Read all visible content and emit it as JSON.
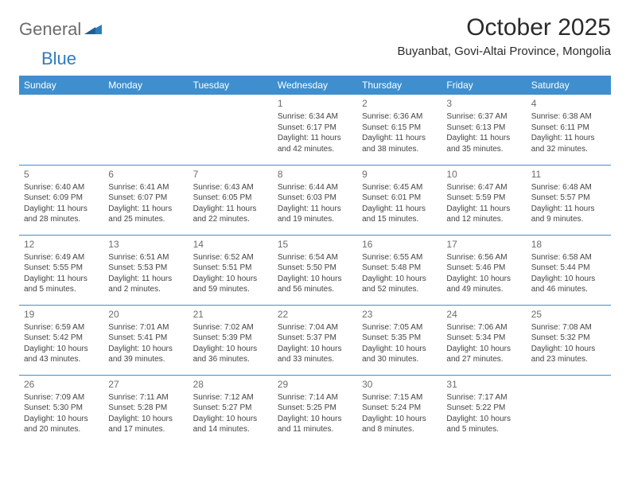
{
  "logo": {
    "part1": "General",
    "part2": "Blue"
  },
  "title": "October 2025",
  "location": "Buyanbat, Govi-Altai Province, Mongolia",
  "day_headers": [
    "Sunday",
    "Monday",
    "Tuesday",
    "Wednesday",
    "Thursday",
    "Friday",
    "Saturday"
  ],
  "colors": {
    "header_bg": "#3f8fce",
    "header_text": "#ffffff",
    "border": "#3f8fce",
    "logo_gray": "#6b6b6b",
    "logo_blue": "#2f7bbf"
  },
  "weeks": [
    [
      {
        "day": "",
        "sunrise": "",
        "sunset": "",
        "daylight": ""
      },
      {
        "day": "",
        "sunrise": "",
        "sunset": "",
        "daylight": ""
      },
      {
        "day": "",
        "sunrise": "",
        "sunset": "",
        "daylight": ""
      },
      {
        "day": "1",
        "sunrise": "Sunrise: 6:34 AM",
        "sunset": "Sunset: 6:17 PM",
        "daylight": "Daylight: 11 hours and 42 minutes."
      },
      {
        "day": "2",
        "sunrise": "Sunrise: 6:36 AM",
        "sunset": "Sunset: 6:15 PM",
        "daylight": "Daylight: 11 hours and 38 minutes."
      },
      {
        "day": "3",
        "sunrise": "Sunrise: 6:37 AM",
        "sunset": "Sunset: 6:13 PM",
        "daylight": "Daylight: 11 hours and 35 minutes."
      },
      {
        "day": "4",
        "sunrise": "Sunrise: 6:38 AM",
        "sunset": "Sunset: 6:11 PM",
        "daylight": "Daylight: 11 hours and 32 minutes."
      }
    ],
    [
      {
        "day": "5",
        "sunrise": "Sunrise: 6:40 AM",
        "sunset": "Sunset: 6:09 PM",
        "daylight": "Daylight: 11 hours and 28 minutes."
      },
      {
        "day": "6",
        "sunrise": "Sunrise: 6:41 AM",
        "sunset": "Sunset: 6:07 PM",
        "daylight": "Daylight: 11 hours and 25 minutes."
      },
      {
        "day": "7",
        "sunrise": "Sunrise: 6:43 AM",
        "sunset": "Sunset: 6:05 PM",
        "daylight": "Daylight: 11 hours and 22 minutes."
      },
      {
        "day": "8",
        "sunrise": "Sunrise: 6:44 AM",
        "sunset": "Sunset: 6:03 PM",
        "daylight": "Daylight: 11 hours and 19 minutes."
      },
      {
        "day": "9",
        "sunrise": "Sunrise: 6:45 AM",
        "sunset": "Sunset: 6:01 PM",
        "daylight": "Daylight: 11 hours and 15 minutes."
      },
      {
        "day": "10",
        "sunrise": "Sunrise: 6:47 AM",
        "sunset": "Sunset: 5:59 PM",
        "daylight": "Daylight: 11 hours and 12 minutes."
      },
      {
        "day": "11",
        "sunrise": "Sunrise: 6:48 AM",
        "sunset": "Sunset: 5:57 PM",
        "daylight": "Daylight: 11 hours and 9 minutes."
      }
    ],
    [
      {
        "day": "12",
        "sunrise": "Sunrise: 6:49 AM",
        "sunset": "Sunset: 5:55 PM",
        "daylight": "Daylight: 11 hours and 5 minutes."
      },
      {
        "day": "13",
        "sunrise": "Sunrise: 6:51 AM",
        "sunset": "Sunset: 5:53 PM",
        "daylight": "Daylight: 11 hours and 2 minutes."
      },
      {
        "day": "14",
        "sunrise": "Sunrise: 6:52 AM",
        "sunset": "Sunset: 5:51 PM",
        "daylight": "Daylight: 10 hours and 59 minutes."
      },
      {
        "day": "15",
        "sunrise": "Sunrise: 6:54 AM",
        "sunset": "Sunset: 5:50 PM",
        "daylight": "Daylight: 10 hours and 56 minutes."
      },
      {
        "day": "16",
        "sunrise": "Sunrise: 6:55 AM",
        "sunset": "Sunset: 5:48 PM",
        "daylight": "Daylight: 10 hours and 52 minutes."
      },
      {
        "day": "17",
        "sunrise": "Sunrise: 6:56 AM",
        "sunset": "Sunset: 5:46 PM",
        "daylight": "Daylight: 10 hours and 49 minutes."
      },
      {
        "day": "18",
        "sunrise": "Sunrise: 6:58 AM",
        "sunset": "Sunset: 5:44 PM",
        "daylight": "Daylight: 10 hours and 46 minutes."
      }
    ],
    [
      {
        "day": "19",
        "sunrise": "Sunrise: 6:59 AM",
        "sunset": "Sunset: 5:42 PM",
        "daylight": "Daylight: 10 hours and 43 minutes."
      },
      {
        "day": "20",
        "sunrise": "Sunrise: 7:01 AM",
        "sunset": "Sunset: 5:41 PM",
        "daylight": "Daylight: 10 hours and 39 minutes."
      },
      {
        "day": "21",
        "sunrise": "Sunrise: 7:02 AM",
        "sunset": "Sunset: 5:39 PM",
        "daylight": "Daylight: 10 hours and 36 minutes."
      },
      {
        "day": "22",
        "sunrise": "Sunrise: 7:04 AM",
        "sunset": "Sunset: 5:37 PM",
        "daylight": "Daylight: 10 hours and 33 minutes."
      },
      {
        "day": "23",
        "sunrise": "Sunrise: 7:05 AM",
        "sunset": "Sunset: 5:35 PM",
        "daylight": "Daylight: 10 hours and 30 minutes."
      },
      {
        "day": "24",
        "sunrise": "Sunrise: 7:06 AM",
        "sunset": "Sunset: 5:34 PM",
        "daylight": "Daylight: 10 hours and 27 minutes."
      },
      {
        "day": "25",
        "sunrise": "Sunrise: 7:08 AM",
        "sunset": "Sunset: 5:32 PM",
        "daylight": "Daylight: 10 hours and 23 minutes."
      }
    ],
    [
      {
        "day": "26",
        "sunrise": "Sunrise: 7:09 AM",
        "sunset": "Sunset: 5:30 PM",
        "daylight": "Daylight: 10 hours and 20 minutes."
      },
      {
        "day": "27",
        "sunrise": "Sunrise: 7:11 AM",
        "sunset": "Sunset: 5:28 PM",
        "daylight": "Daylight: 10 hours and 17 minutes."
      },
      {
        "day": "28",
        "sunrise": "Sunrise: 7:12 AM",
        "sunset": "Sunset: 5:27 PM",
        "daylight": "Daylight: 10 hours and 14 minutes."
      },
      {
        "day": "29",
        "sunrise": "Sunrise: 7:14 AM",
        "sunset": "Sunset: 5:25 PM",
        "daylight": "Daylight: 10 hours and 11 minutes."
      },
      {
        "day": "30",
        "sunrise": "Sunrise: 7:15 AM",
        "sunset": "Sunset: 5:24 PM",
        "daylight": "Daylight: 10 hours and 8 minutes."
      },
      {
        "day": "31",
        "sunrise": "Sunrise: 7:17 AM",
        "sunset": "Sunset: 5:22 PM",
        "daylight": "Daylight: 10 hours and 5 minutes."
      },
      {
        "day": "",
        "sunrise": "",
        "sunset": "",
        "daylight": ""
      }
    ]
  ]
}
